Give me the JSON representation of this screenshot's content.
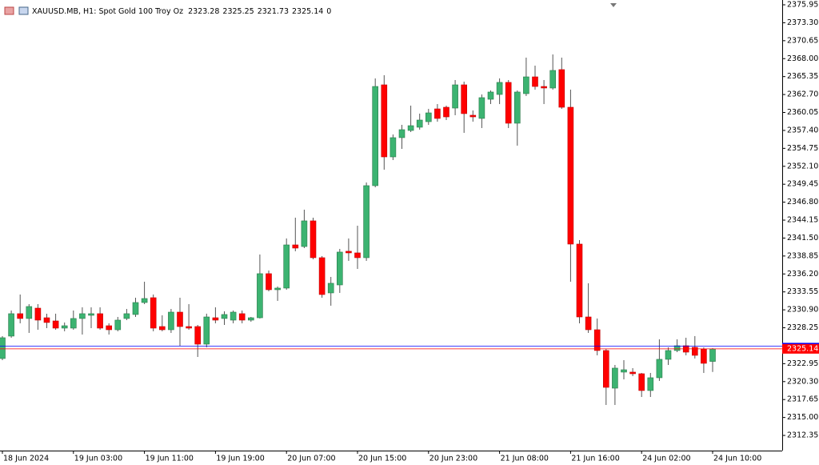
{
  "chart_data": {
    "type": "candlestick",
    "title": "XAUUSD.MB, H1:  Spot Gold 100 Troy Oz",
    "volume": 0,
    "categories": [
      "18 Jun 2024",
      null,
      null,
      null,
      null,
      null,
      null,
      null,
      "19 Jun 03:00",
      null,
      null,
      null,
      null,
      null,
      null,
      null,
      "19 Jun 11:00",
      null,
      null,
      null,
      null,
      null,
      null,
      null,
      "19 Jun 19:00",
      null,
      null,
      null,
      null,
      null,
      null,
      null,
      "20 Jun 07:00",
      null,
      null,
      null,
      null,
      null,
      null,
      null,
      "20 Jun 15:00",
      null,
      null,
      null,
      null,
      null,
      null,
      null,
      "20 Jun 23:00",
      null,
      null,
      null,
      null,
      null,
      null,
      null,
      "21 Jun 08:00",
      null,
      null,
      null,
      null,
      null,
      null,
      null,
      "21 Jun 16:00",
      null,
      null,
      null,
      null,
      null,
      null,
      null,
      "24 Jun 02:00",
      null,
      null,
      null,
      null,
      null,
      null,
      null,
      "24 Jun 10:00"
    ],
    "open": [
      2323.71,
      2327.02,
      2330.33,
      2329.62,
      2331.15,
      2329.73,
      2329.26,
      2328.2,
      2328.2,
      2329.62,
      2330.09,
      2330.33,
      2328.55,
      2327.96,
      2329.62,
      2330.21,
      2331.98,
      2332.69,
      2328.43,
      2327.96,
      2330.56,
      2328.43,
      2328.43,
      2325.83,
      2329.73,
      2329.62,
      2329.38,
      2330.33,
      2329.38,
      2329.73,
      2336.24,
      2333.87,
      2334.11,
      2340.49,
      2340.25,
      2344.04,
      2338.6,
      2333.4,
      2334.58,
      2339.55,
      2339.31,
      2338.6,
      2349.24,
      2364.13,
      2353.49,
      2356.33,
      2357.39,
      2357.87,
      2358.69,
      2360.58,
      2360.82,
      2360.7,
      2364.13,
      2359.64,
      2359.17,
      2362.0,
      2362.71,
      2364.49,
      2358.46,
      2362.83,
      2365.31,
      2363.89,
      2363.66,
      2366.38,
      2360.82,
      2340.61,
      2329.85,
      2327.96,
      2324.89,
      2319.33,
      2321.7,
      2321.7,
      2321.46,
      2318.98,
      2320.87,
      2323.59,
      2324.89,
      2325.6,
      2325.36,
      2325.12,
      2323.28
    ],
    "high": [
      2327.02,
      2330.8,
      2333.16,
      2331.74,
      2331.74,
      2330.33,
      2330.33,
      2329.03,
      2330.8,
      2331.27,
      2331.27,
      2331.27,
      2328.91,
      2329.85,
      2331.03,
      2332.69,
      2335.05,
      2333.16,
      2330.09,
      2331.03,
      2332.69,
      2331.74,
      2328.67,
      2330.33,
      2331.27,
      2330.68,
      2330.8,
      2330.8,
      2329.85,
      2339.07,
      2336.71,
      2334.34,
      2341.44,
      2344.51,
      2345.69,
      2344.51,
      2338.84,
      2335.76,
      2339.9,
      2341.44,
      2343.33,
      2349.71,
      2365.08,
      2365.55,
      2356.8,
      2358.22,
      2361.06,
      2359.88,
      2360.58,
      2361.29,
      2361.06,
      2364.84,
      2364.6,
      2360.35,
      2362.71,
      2363.3,
      2365.08,
      2364.84,
      2363.3,
      2368.15,
      2366.97,
      2364.84,
      2368.62,
      2368.15,
      2363.42,
      2341.2,
      2334.82,
      2329.62,
      2325.12,
      2322.76,
      2323.47,
      2322.29,
      2321.58,
      2321.58,
      2326.54,
      2325.36,
      2326.54,
      2326.78,
      2327.02,
      2325.36,
      2325.25
    ],
    "low": [
      2323.47,
      2326.78,
      2328.91,
      2327.49,
      2327.96,
      2328.2,
      2327.96,
      2327.73,
      2327.96,
      2327.25,
      2328.2,
      2327.96,
      2327.25,
      2327.73,
      2329.38,
      2329.85,
      2331.74,
      2327.73,
      2327.73,
      2327.49,
      2325.6,
      2327.96,
      2323.94,
      2325.36,
      2328.91,
      2328.67,
      2328.91,
      2328.91,
      2329.14,
      2329.62,
      2333.63,
      2332.22,
      2333.87,
      2339.55,
      2340.02,
      2338.36,
      2332.69,
      2331.51,
      2333.4,
      2338.13,
      2336.94,
      2338.13,
      2349.0,
      2351.6,
      2353.02,
      2354.67,
      2357.16,
      2357.51,
      2358.22,
      2358.69,
      2358.93,
      2359.64,
      2357.04,
      2358.69,
      2357.75,
      2361.29,
      2361.29,
      2357.75,
      2355.15,
      2362.48,
      2363.42,
      2361.29,
      2363.42,
      2360.58,
      2335.05,
      2328.91,
      2327.49,
      2324.18,
      2316.85,
      2316.85,
      2320.63,
      2321.11,
      2318.03,
      2318.03,
      2320.4,
      2322.76,
      2324.65,
      2324.18,
      2323.71,
      2321.58,
      2321.73
    ],
    "close": [
      2326.78,
      2330.33,
      2329.62,
      2331.39,
      2329.38,
      2329.03,
      2328.2,
      2328.55,
      2329.62,
      2330.33,
      2330.33,
      2328.2,
      2327.96,
      2329.38,
      2330.33,
      2331.98,
      2332.57,
      2328.2,
      2327.96,
      2330.56,
      2328.43,
      2328.2,
      2325.83,
      2329.85,
      2329.38,
      2330.21,
      2330.56,
      2329.38,
      2329.73,
      2336.24,
      2333.87,
      2334.11,
      2340.49,
      2340.02,
      2344.04,
      2338.6,
      2333.16,
      2334.82,
      2339.43,
      2339.31,
      2338.6,
      2349.24,
      2363.89,
      2353.49,
      2356.33,
      2357.51,
      2358.1,
      2358.93,
      2359.99,
      2359.17,
      2359.4,
      2364.13,
      2359.88,
      2359.4,
      2362.24,
      2363.07,
      2364.49,
      2358.46,
      2363.07,
      2365.31,
      2363.89,
      2363.66,
      2366.26,
      2360.82,
      2340.61,
      2329.85,
      2327.96,
      2324.89,
      2319.45,
      2322.29,
      2322.05,
      2321.46,
      2318.98,
      2320.87,
      2323.59,
      2324.89,
      2325.6,
      2324.65,
      2324.18,
      2323.0,
      2325.14
    ],
    "ask": 2325.55,
    "up_color": "#3cb371",
    "down_color": "#ff0000",
    "wick_color": "#555555",
    "last_color": "#ff0000",
    "ask_color": "#0000ff",
    "ylim": [
      2310.11,
      2376.66
    ],
    "yticks": [
      2375.95,
      {
        "value": 2373.3,
        "label": "2373.30"
      },
      2370.65,
      {
        "value": 2368,
        "label": "2368.00"
      },
      2365.35,
      {
        "value": 2362.7,
        "label": "2362.70"
      },
      2360.05,
      {
        "value": 2357.4,
        "label": "2357.40"
      },
      2354.75,
      {
        "value": 2352.1,
        "label": "2352.10"
      },
      2349.45,
      {
        "value": 2346.8,
        "label": "2346.80"
      },
      2344.15,
      {
        "value": 2341.5,
        "label": "2341.50"
      },
      2338.85,
      {
        "value": 2336.2,
        "label": "2336.20"
      },
      2333.55,
      {
        "value": 2330.9,
        "label": "2330.90"
      },
      2328.25,
      2322.95,
      {
        "value": 2320.3,
        "label": "2320.30"
      },
      2317.65,
      {
        "value": 2315,
        "label": "2315.00"
      },
      2312.35
    ]
  }
}
